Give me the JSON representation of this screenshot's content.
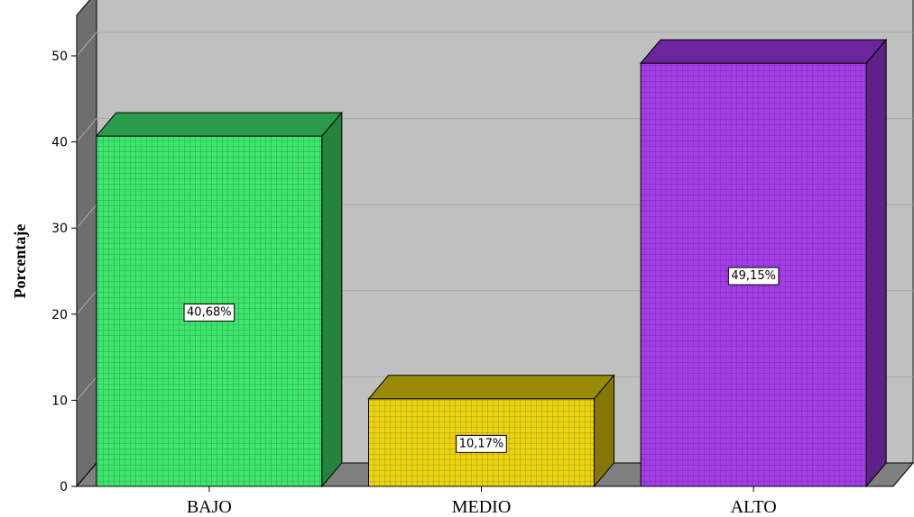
{
  "chart_data": {
    "type": "bar",
    "title": "",
    "xlabel": "",
    "ylabel": "Porcentaje",
    "ylim": [
      0,
      50
    ],
    "yticks": [
      0,
      10,
      20,
      30,
      40,
      50
    ],
    "grid": true,
    "three_d": true,
    "categories": [
      "BAJO",
      "MEDIO",
      "ALTO"
    ],
    "values": [
      40.68,
      10.17,
      49.15
    ],
    "data_labels": [
      "40,68%",
      "10,17%",
      "49,15%"
    ],
    "colors": [
      {
        "front": "#3ee66e",
        "top": "#2a9b4a",
        "side": "#25833f"
      },
      {
        "front": "#ecd40f",
        "top": "#9a8a06",
        "side": "#857705"
      },
      {
        "front": "#a43ee8",
        "top": "#6c259c",
        "side": "#5e2089"
      }
    ],
    "wall_color": "#c0c0c0",
    "floor_color": "#808080"
  }
}
